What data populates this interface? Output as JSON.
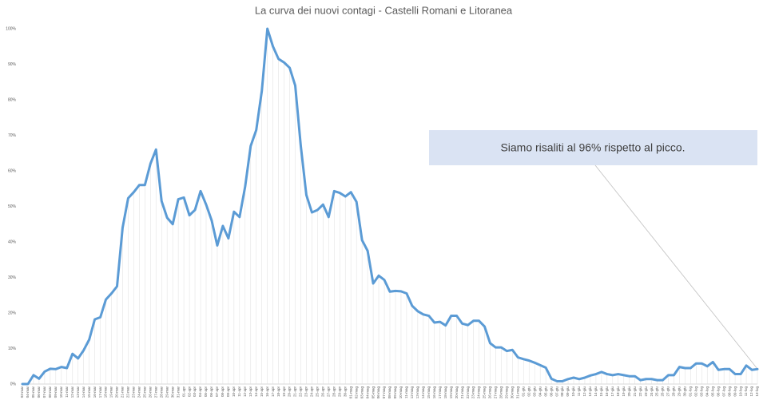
{
  "chart_data": {
    "type": "line",
    "title": "La curva dei nuovi contagi - Castelli Romani e Litoranea",
    "annotation": "Siamo risaliti al 96% rispetto al picco.",
    "color": "#5b9bd5",
    "grid": true,
    "ylim": [
      0,
      100
    ],
    "yticks": [
      {
        "value": 0,
        "label": "0%"
      },
      {
        "value": 10,
        "label": "10%"
      },
      {
        "value": 20,
        "label": "20%"
      },
      {
        "value": 30,
        "label": "30%"
      },
      {
        "value": 40,
        "label": "40%"
      },
      {
        "value": 50,
        "label": "50%"
      },
      {
        "value": 60,
        "label": "60%"
      },
      {
        "value": 70,
        "label": "70%"
      },
      {
        "value": 80,
        "label": "80%"
      },
      {
        "value": 90,
        "label": "90%"
      },
      {
        "value": 100,
        "label": "100%"
      }
    ],
    "categories": [
      "03-mar",
      "04-mar",
      "05-mar",
      "06-mar",
      "07-mar",
      "08-mar",
      "09-mar",
      "10-mar",
      "11-mar",
      "12-mar",
      "13-mar",
      "14-mar",
      "15-mar",
      "16-mar",
      "17-mar",
      "18-mar",
      "19-mar",
      "20-mar",
      "21-mar",
      "22-mar",
      "23-mar",
      "24-mar",
      "25-mar",
      "26-mar",
      "27-mar",
      "28-mar",
      "29-mar",
      "30-mar",
      "31-mar",
      "01-apr",
      "02-apr",
      "03-apr",
      "04-apr",
      "05-apr",
      "06-apr",
      "07-apr",
      "08-apr",
      "09-apr",
      "10-apr",
      "11-apr",
      "12-apr",
      "13-apr",
      "14-apr",
      "15-apr",
      "16-apr",
      "17-apr",
      "18-apr",
      "19-apr",
      "20-apr",
      "21-apr",
      "22-apr",
      "23-apr",
      "24-apr",
      "25-apr",
      "26-apr",
      "27-apr",
      "28-apr",
      "29-apr",
      "30-apr",
      "01-mag",
      "02-mag",
      "03-mag",
      "04-mag",
      "05-mag",
      "06-mag",
      "07-mag",
      "08-mag",
      "09-mag",
      "10-mag",
      "11-mag",
      "12-mag",
      "13-mag",
      "14-mag",
      "15-mag",
      "16-mag",
      "17-mag",
      "18-mag",
      "19-mag",
      "20-mag",
      "21-mag",
      "22-mag",
      "23-mag",
      "24-mag",
      "25-mag",
      "26-mag",
      "27-mag",
      "28-mag",
      "29-mag",
      "30-mag",
      "31-mag",
      "01-giu",
      "02-giu",
      "03-giu",
      "04-giu",
      "05-giu",
      "06-giu",
      "07-giu",
      "08-giu",
      "09-giu",
      "10-giu",
      "11-giu",
      "12-giu",
      "13-giu",
      "14-giu",
      "15-giu",
      "16-giu",
      "17-giu",
      "18-giu",
      "19-giu",
      "20-giu",
      "21-giu",
      "22-giu",
      "23-giu",
      "24-giu",
      "25-giu",
      "26-giu",
      "27-giu",
      "28-giu",
      "29-giu",
      "30-giu",
      "01-lug",
      "02-lug",
      "03-lug",
      "04-lug",
      "05-lug",
      "06-lug",
      "07-lug",
      "08-lug",
      "09-lug",
      "10-lug",
      "11-lug",
      "12-lug",
      "13-lug"
    ],
    "values": [
      0,
      0,
      2.5,
      1.5,
      3.5,
      4.3,
      4.2,
      4.8,
      4.5,
      8.5,
      7.2,
      9.5,
      12.5,
      18.2,
      18.8,
      23.8,
      25.5,
      27.5,
      44,
      52.3,
      54,
      56,
      56,
      62,
      66,
      51.5,
      46.8,
      45,
      52,
      52.5,
      47.5,
      49,
      54.3,
      50.5,
      46,
      39,
      44.5,
      41,
      48.5,
      47,
      55.5,
      67,
      71.5,
      82.5,
      100,
      95,
      91.5,
      90.5,
      89,
      84,
      67,
      53.2,
      48.3,
      49,
      50.5,
      47,
      54.3,
      53.8,
      52.8,
      54,
      51.3,
      40.5,
      37.5,
      28.3,
      30.5,
      29.3,
      26,
      26.2,
      26.1,
      25.5,
      22,
      20.5,
      19.6,
      19.2,
      17.3,
      17.5,
      16.5,
      19.2,
      19.2,
      17,
      16.6,
      17.8,
      17.8,
      16.2,
      11.5,
      10.3,
      10.3,
      9.3,
      9.6,
      7.5,
      7,
      6.6,
      6,
      5.3,
      4.6,
      1.5,
      0.8,
      0.8,
      1.4,
      1.8,
      1.4,
      1.8,
      2.4,
      2.8,
      3.4,
      2.8,
      2.5,
      2.8,
      2.5,
      2.2,
      2.2,
      1.1,
      1.4,
      1.4,
      1.1,
      1.1,
      2.5,
      2.5,
      4.8,
      4.5,
      4.5,
      5.8,
      5.8,
      5,
      6.2,
      4,
      4.2,
      4.2,
      2.8,
      2.8,
      5.2,
      4,
      4.2
    ]
  }
}
